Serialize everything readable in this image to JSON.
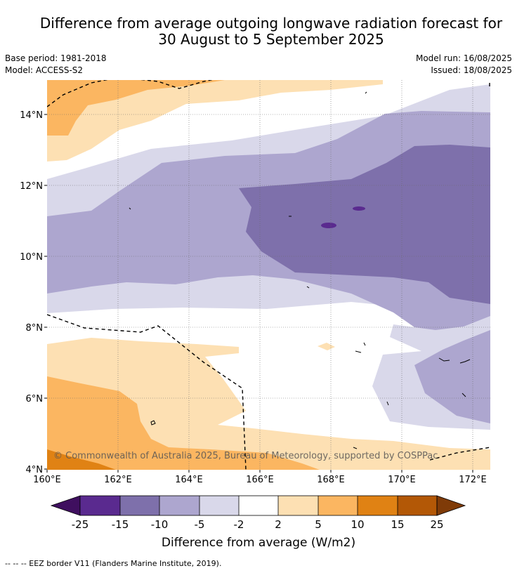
{
  "title": {
    "line1": "Difference from average outgoing longwave radiation forecast for",
    "line2": "30 August to 5 September 2025"
  },
  "meta": {
    "base_period": "Base period: 1981-2018",
    "model": "Model: ACCESS-S2",
    "model_run": "Model run: 16/08/2025",
    "issued": "Issued: 18/08/2025"
  },
  "map": {
    "x_ticks": [
      "160°E",
      "162°E",
      "164°E",
      "166°E",
      "168°E",
      "170°E",
      "172°E"
    ],
    "y_ticks": [
      "14°N",
      "12°N",
      "10°N",
      "8°N",
      "6°N",
      "4°N"
    ],
    "copyright": "© Commonwealth of Australia 2025, Bureau of Meteorology, supported by COSPPac"
  },
  "colorbar": {
    "ticks": [
      "-25",
      "-15",
      "-10",
      "-5",
      "-2",
      "2",
      "5",
      "10",
      "15",
      "25"
    ],
    "label": "Difference from average (W/m2)",
    "colors": {
      "below": "#3f0f5f",
      "n25": "#5a2a8f",
      "n15": "#7e70ab",
      "n10": "#ada6cf",
      "n5": "#d9d8ea",
      "neutral": "#ffffff",
      "p2": "#fde0b3",
      "p5": "#fbb661",
      "p10": "#e08214",
      "p15": "#b35806",
      "above": "#7f3b08"
    }
  },
  "footnote": "--  --  -- EEZ border V11 (Flanders Marine Institute, 2019)."
}
